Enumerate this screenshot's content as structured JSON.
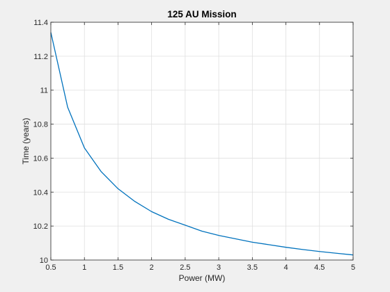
{
  "chart_data": {
    "type": "line",
    "title": "125 AU Mission",
    "xlabel": "Power (MW)",
    "ylabel": "Time (years)",
    "xlim": [
      0.5,
      5
    ],
    "ylim": [
      10,
      11.4
    ],
    "xticks": [
      0.5,
      1,
      1.5,
      2,
      2.5,
      3,
      3.5,
      4,
      4.5,
      5
    ],
    "xtick_labels": [
      "0.5",
      "1",
      "1.5",
      "2",
      "2.5",
      "3",
      "3.5",
      "4",
      "4.5",
      "5"
    ],
    "yticks": [
      10,
      10.2,
      10.4,
      10.6,
      10.8,
      11,
      11.2,
      11.4
    ],
    "ytick_labels": [
      "10",
      "10.2",
      "10.4",
      "10.6",
      "10.8",
      "11",
      "11.2",
      "11.4"
    ],
    "grid": true,
    "legend": "none",
    "series": [
      {
        "color": "#0072BD",
        "x": [
          0.5,
          0.75,
          1.0,
          1.25,
          1.5,
          1.75,
          2.0,
          2.25,
          2.5,
          2.75,
          3.0,
          3.25,
          3.5,
          3.75,
          4.0,
          4.25,
          4.5,
          4.75,
          5.0
        ],
        "y": [
          11.34,
          10.9,
          10.66,
          10.52,
          10.42,
          10.345,
          10.285,
          10.24,
          10.205,
          10.17,
          10.145,
          10.125,
          10.105,
          10.09,
          10.075,
          10.062,
          10.05,
          10.04,
          10.03
        ]
      }
    ]
  },
  "colors": {
    "figure_background": "#f0f0f0",
    "axes_background": "#ffffff",
    "axis": "#262626",
    "grid": "#dfdfdf"
  }
}
